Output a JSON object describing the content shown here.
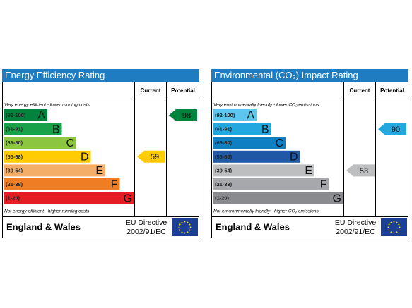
{
  "chart_data": [
    {
      "type": "epc",
      "title": "Energy Efficiency Rating",
      "columns": [
        "Current",
        "Potential"
      ],
      "top_note": "Very energy efficient - lower running costs",
      "bottom_note": "Not energy efficient - higher running costs",
      "bands": {
        "ranges": [
          "(92-100)",
          "(81-91)",
          "(69-80)",
          "(55-68)",
          "(39-54)",
          "(21-38)",
          "(1-20)"
        ],
        "letters": [
          "A",
          "B",
          "C",
          "D",
          "E",
          "F",
          "G"
        ],
        "colors": [
          "#00833d",
          "#19a14a",
          "#8cc53f",
          "#ffcc03",
          "#f5ae68",
          "#ee7d23",
          "#e41c24"
        ]
      },
      "current": 59,
      "potential": 98,
      "footer": {
        "region": "England & Wales",
        "directive": "EU Directive",
        "directive_number": "2002/91/EC"
      }
    },
    {
      "type": "epc",
      "title": "Environmental (CO₂) Impact Rating",
      "columns": [
        "Current",
        "Potential"
      ],
      "top_note": "Very environmentally friendly - lower CO₂ emissions",
      "bottom_note": "Not environmentally friendly - higher CO₂ emissions",
      "bands": {
        "ranges": [
          "(92-100)",
          "(81-91)",
          "(69-80)",
          "(55-68)",
          "(39-54)",
          "(21-38)",
          "(1-20)"
        ],
        "letters": [
          "A",
          "B",
          "C",
          "D",
          "E",
          "F",
          "G"
        ],
        "colors": [
          "#5cc6ee",
          "#22a7df",
          "#0f7fc4",
          "#1f58a4",
          "#bcbec0",
          "#a6a8ab",
          "#898b8e"
        ]
      },
      "current": 53,
      "potential": 90,
      "footer": {
        "region": "England & Wales",
        "directive": "EU Directive",
        "directive_number": "2002/91/EC"
      }
    }
  ]
}
